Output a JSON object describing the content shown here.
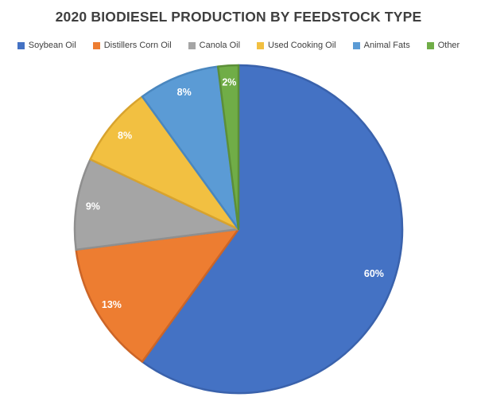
{
  "chart_data": {
    "type": "pie",
    "title": "2020 BIODIESEL PRODUCTION BY FEEDSTOCK TYPE",
    "categories": [
      "Soybean Oil",
      "Distillers Corn Oil",
      "Canola Oil",
      "Used Cooking Oil",
      "Animal Fats",
      "Other"
    ],
    "values": [
      60,
      13,
      9,
      8,
      8,
      2
    ],
    "data_labels": [
      "60%",
      "13%",
      "9%",
      "8%",
      "8%",
      "2%"
    ],
    "unit": "%",
    "colors": [
      "#4472C4",
      "#ED7D31",
      "#A5A5A5",
      "#F2C041",
      "#5B9BD5",
      "#70AD47"
    ],
    "border_colors": [
      "#3A62AC",
      "#CC6527",
      "#8F8F8F",
      "#D8A32E",
      "#4A87BF",
      "#5C8F38"
    ],
    "data_label_color": "#FFFFFF",
    "title_color": "#3F3F3F",
    "legend_text_color": "#404040",
    "legend_position": "top",
    "start_angle_deg": 0,
    "direction": "clockwise"
  }
}
